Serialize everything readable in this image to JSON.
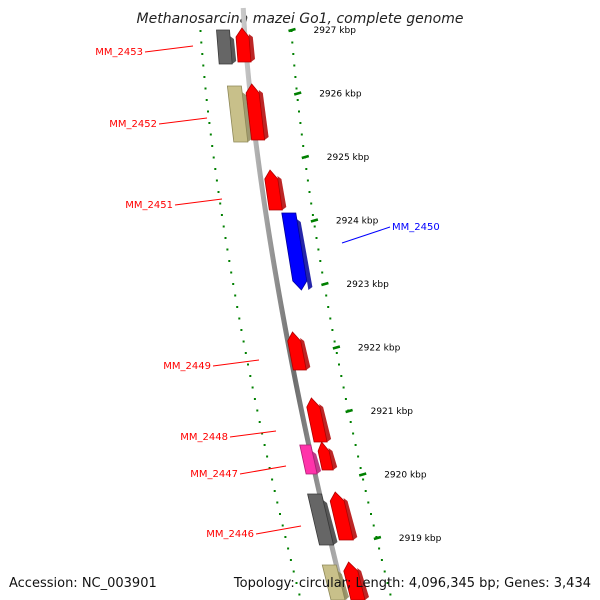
{
  "title": "Methanosarcina mazei Go1, complete genome",
  "footer": {
    "accession": "Accession: NC_003901",
    "summary": "Topology: circular; Length: 4,096,345 bp; Genes: 3,434"
  },
  "colors": {
    "forward": "#ff0000",
    "forward_dark": "#b00000",
    "highlight": "#0000ff",
    "highlight_dark": "#00009a",
    "gray": "#666666",
    "gray_dark": "#3a3a3a",
    "khaki": "#c8c08a",
    "khaki_dark": "#8e8858",
    "magenta": "#ff33aa",
    "magenta_dark": "#b01c74",
    "tick": "#008000",
    "axis": "#8a8a8a"
  },
  "ticks": [
    "2927 kbp",
    "2926 kbp",
    "2925 kbp",
    "2924 kbp",
    "2923 kbp",
    "2922 kbp",
    "2921 kbp",
    "2920 kbp",
    "2919 kbp"
  ],
  "genes": [
    {
      "label": "MM_2453",
      "label_color": "#ff0000"
    },
    {
      "label": "MM_2452",
      "label_color": "#ff0000"
    },
    {
      "label": "MM_2451",
      "label_color": "#ff0000"
    },
    {
      "label": "MM_2450",
      "label_color": "#0000ff"
    },
    {
      "label": "MM_2449",
      "label_color": "#ff0000"
    },
    {
      "label": "MM_2448",
      "label_color": "#ff0000"
    },
    {
      "label": "MM_2447",
      "label_color": "#ff0000"
    },
    {
      "label": "MM_2446",
      "label_color": "#ff0000"
    }
  ],
  "features": [
    {
      "gene": "MM_2453",
      "kind": "box",
      "color": "gray"
    },
    {
      "gene": "MM_2453",
      "kind": "arrow",
      "color": "forward"
    },
    {
      "gene": "MM_2452",
      "kind": "box",
      "color": "khaki"
    },
    {
      "gene": "MM_2452",
      "kind": "arrow",
      "color": "forward"
    },
    {
      "gene": "MM_2451",
      "kind": "arrow",
      "color": "forward"
    },
    {
      "gene": "MM_2450",
      "kind": "arrow-down",
      "color": "highlight"
    },
    {
      "gene": "MM_2449",
      "kind": "arrow",
      "color": "forward"
    },
    {
      "gene": "MM_2448",
      "kind": "arrow",
      "color": "forward"
    },
    {
      "gene": "MM_2447",
      "kind": "box",
      "color": "magenta"
    },
    {
      "gene": "MM_2447",
      "kind": "arrow",
      "color": "forward"
    },
    {
      "gene": "MM_2446",
      "kind": "box",
      "color": "gray"
    },
    {
      "gene": "MM_2446",
      "kind": "arrow",
      "color": "forward"
    },
    {
      "gene": "",
      "kind": "box",
      "color": "khaki"
    },
    {
      "gene": "",
      "kind": "arrow",
      "color": "forward"
    }
  ]
}
